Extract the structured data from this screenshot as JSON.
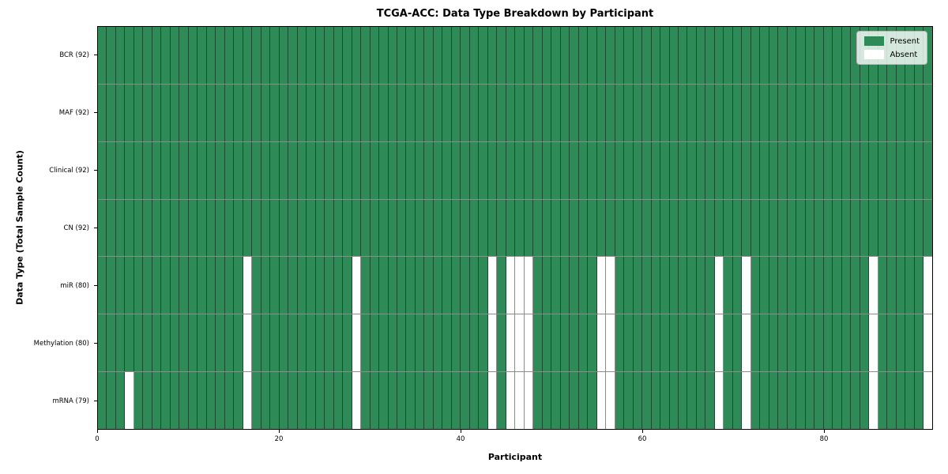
{
  "chart_data": {
    "type": "heatmap",
    "title": "TCGA-ACC: Data Type Breakdown by Participant",
    "xlabel": "Participant",
    "ylabel": "Data Type (Total Sample Count)",
    "n_participants": 92,
    "x_ticks": [
      0,
      20,
      40,
      60,
      80
    ],
    "xlim": [
      0,
      92
    ],
    "grid": "cell-borders",
    "legend_position": "upper right",
    "legend": [
      {
        "label": "Present",
        "color": "#2e8b57"
      },
      {
        "label": "Absent",
        "color": "#ffffff"
      }
    ],
    "colors": {
      "present": "#2e8b57",
      "absent": "#ffffff",
      "cell_border": "rgba(0,0,0,0.45)",
      "plot_border": "#000000"
    },
    "rows": [
      {
        "label": "BCR (92)",
        "total": 92,
        "absent_participants": []
      },
      {
        "label": "MAF (92)",
        "total": 92,
        "absent_participants": []
      },
      {
        "label": "Clinical (92)",
        "total": 92,
        "absent_participants": []
      },
      {
        "label": "CN (92)",
        "total": 92,
        "absent_participants": []
      },
      {
        "label": "miR (80)",
        "total": 80,
        "absent_participants": [
          16,
          28,
          43,
          45,
          46,
          47,
          55,
          56,
          68,
          71,
          85,
          91
        ]
      },
      {
        "label": "Methylation (80)",
        "total": 80,
        "absent_participants": [
          16,
          28,
          43,
          45,
          46,
          47,
          55,
          56,
          68,
          71,
          85,
          91
        ]
      },
      {
        "label": "mRNA (79)",
        "total": 79,
        "absent_participants": [
          3,
          16,
          28,
          43,
          45,
          46,
          47,
          55,
          56,
          68,
          71,
          85,
          91
        ]
      }
    ]
  }
}
